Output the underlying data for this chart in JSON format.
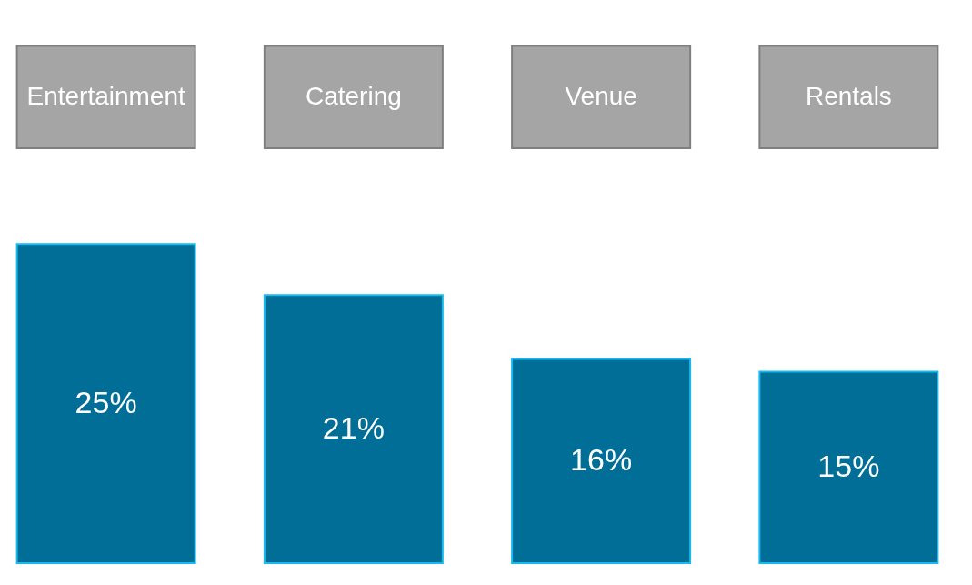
{
  "chart_data": {
    "type": "bar",
    "categories": [
      "Entertainment",
      "Catering",
      "Venue",
      "Rentals"
    ],
    "values": [
      25,
      21,
      16,
      15
    ],
    "value_labels": [
      "25%",
      "21%",
      "16%",
      "15%"
    ],
    "color": "#006e96",
    "grid": false
  }
}
